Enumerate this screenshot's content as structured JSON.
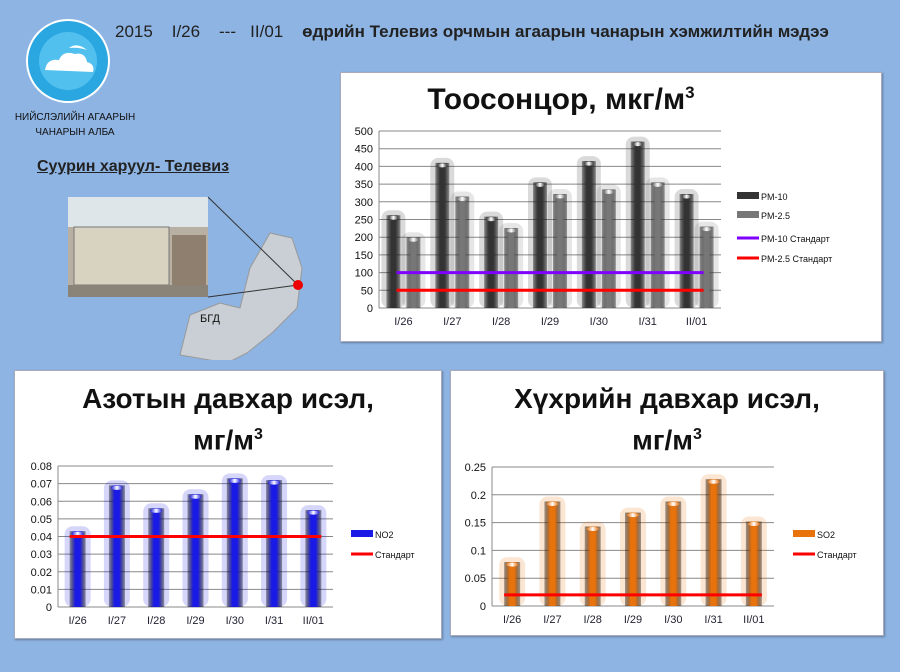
{
  "header": {
    "year": "2015",
    "range_start": "I/26",
    "sep": "---",
    "range_end": "II/01",
    "title": "өдрийн Телевиз орчмын агаарын чанарын хэмжилтийн мэдээ"
  },
  "org": {
    "line1": "НИЙСЛЭЛИЙН АГААРЫН",
    "line2": "ЧАНАРЫН АЛБА",
    "logo_text": "НИЙСЛЭЛИЙН АГААРЫН ЧАНАРЫН АЛБА"
  },
  "station": {
    "label": "Суурин харуул- Телевиз",
    "map_label": "БГД"
  },
  "colors": {
    "background": "#8eb4e3",
    "pm10": "#333333",
    "pm25": "#777777",
    "pm10_std": "#7f00ff",
    "std": "#ff0000",
    "no2": "#1a1ae6",
    "so2": "#e8720c"
  },
  "chart_data": [
    {
      "type": "bar",
      "title": "Тоосонцор, мкг/м",
      "title_sup": "3",
      "categories": [
        "I/26",
        "I/27",
        "I/28",
        "I/29",
        "I/30",
        "I/31",
        "II/01"
      ],
      "ylim": [
        0,
        500
      ],
      "yticks": [
        "0",
        "50",
        "100",
        "150",
        "200",
        "250",
        "300",
        "350",
        "400",
        "450",
        "500"
      ],
      "grid": true,
      "legend_position": "right",
      "series": [
        {
          "name": "PM-10",
          "values": [
            262,
            410,
            258,
            355,
            415,
            470,
            322
          ]
        },
        {
          "name": "PM-2.5",
          "values": [
            200,
            315,
            226,
            322,
            335,
            355,
            230
          ]
        }
      ],
      "lines": [
        {
          "name": "PM-10 Стандарт",
          "value": 100
        },
        {
          "name": "PM-2.5 Стандарт",
          "value": 50
        }
      ]
    },
    {
      "type": "bar",
      "title": "Азотын давхар исэл,",
      "title2": "мг/м",
      "title_sup": "3",
      "categories": [
        "I/26",
        "I/27",
        "I/28",
        "I/29",
        "I/30",
        "I/31",
        "II/01"
      ],
      "ylim": [
        0,
        0.08
      ],
      "yticks": [
        "0",
        "0.01",
        "0.02",
        "0.03",
        "0.04",
        "0.05",
        "0.06",
        "0.07",
        "0.08"
      ],
      "grid": true,
      "legend_position": "right",
      "series": [
        {
          "name": "NO2",
          "values": [
            0.043,
            0.069,
            0.056,
            0.064,
            0.073,
            0.072,
            0.055
          ]
        }
      ],
      "lines": [
        {
          "name": "Стандарт",
          "value": 0.04
        }
      ]
    },
    {
      "type": "bar",
      "title": "Хүхрийн давхар исэл,",
      "title2": "мг/м",
      "title_sup": "3",
      "categories": [
        "I/26",
        "I/27",
        "I/28",
        "I/29",
        "I/30",
        "I/31",
        "II/01"
      ],
      "ylim": [
        0,
        0.25
      ],
      "yticks": [
        "0",
        "0.05",
        "0.1",
        "0.15",
        "0.2",
        "0.25"
      ],
      "grid": true,
      "legend_position": "right",
      "series": [
        {
          "name": "SO2",
          "values": [
            0.079,
            0.188,
            0.143,
            0.168,
            0.188,
            0.228,
            0.152
          ]
        }
      ],
      "lines": [
        {
          "name": "Стандарт",
          "value": 0.02
        }
      ]
    }
  ]
}
